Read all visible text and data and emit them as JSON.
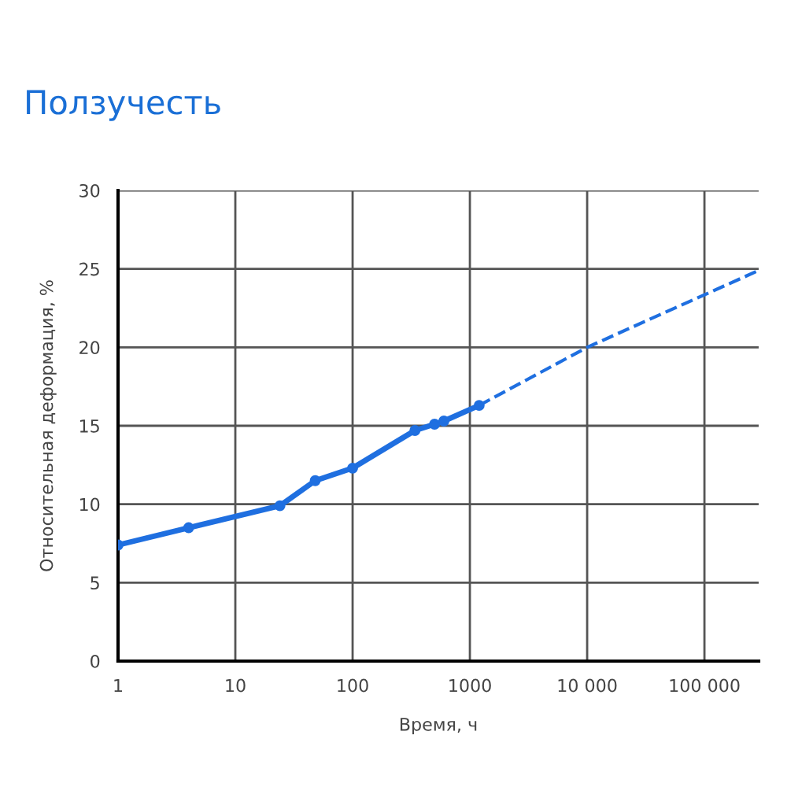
{
  "chart_data": {
    "type": "line",
    "title": "Ползучесть",
    "xlabel": "Время, ч",
    "ylabel": "Относительная деформация, %",
    "log": "x",
    "xlim": [
      1,
      290000
    ],
    "xticks": [
      1,
      10,
      100,
      1000,
      {
        "value": 10000,
        "label": "10 000"
      },
      {
        "value": 100000,
        "label": "100 000"
      }
    ],
    "ylim": [
      0,
      30
    ],
    "yticks": [
      0,
      5,
      10,
      15,
      20,
      25,
      30
    ],
    "grid": true,
    "legend": false,
    "series": [
      {
        "color": "#1f6fe0",
        "marker": "circle",
        "line_style": "solid",
        "x": [
          1,
          4,
          24,
          48,
          100,
          340,
          500,
          600,
          1200
        ],
        "values": [
          7.4,
          8.5,
          9.9,
          11.5,
          12.3,
          14.7,
          15.1,
          15.3,
          16.3
        ]
      },
      {
        "color": "#1f6fe0",
        "marker": "none",
        "line_style": "dashed",
        "x": [
          1200,
          10000,
          290000
        ],
        "values": [
          16.3,
          20,
          24.9
        ]
      }
    ]
  }
}
